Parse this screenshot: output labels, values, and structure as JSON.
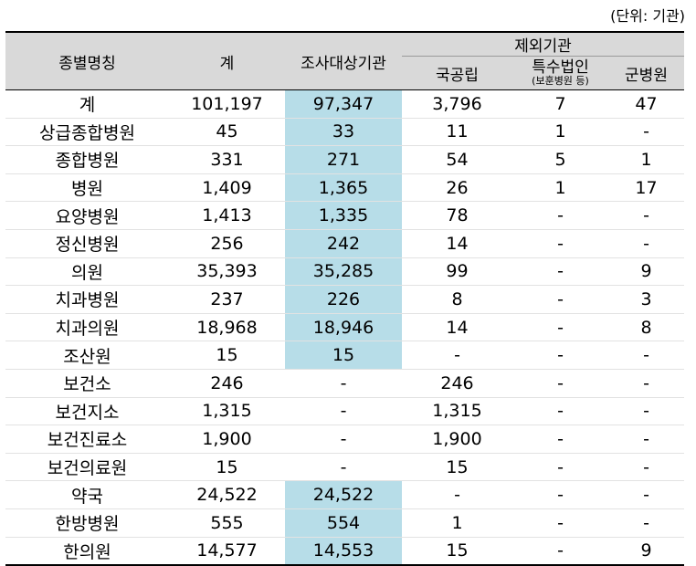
{
  "unit_label": "(단위: 기관)",
  "headers": {
    "name": "종별명칭",
    "total": "계",
    "surveyed": "조사대상기관",
    "excluded": "제외기관",
    "national": "국공립",
    "special": "특수법인",
    "special_note": "(보훈병원 등)",
    "military": "군병원"
  },
  "rows": [
    {
      "name": "계",
      "total": "101,197",
      "surveyed": "97,347",
      "national": "3,796",
      "special": "7",
      "military": "47"
    },
    {
      "name": "상급종합병원",
      "total": "45",
      "surveyed": "33",
      "national": "11",
      "special": "1",
      "military": "-"
    },
    {
      "name": "종합병원",
      "total": "331",
      "surveyed": "271",
      "national": "54",
      "special": "5",
      "military": "1"
    },
    {
      "name": "병원",
      "total": "1,409",
      "surveyed": "1,365",
      "national": "26",
      "special": "1",
      "military": "17"
    },
    {
      "name": "요양병원",
      "total": "1,413",
      "surveyed": "1,335",
      "national": "78",
      "special": "-",
      "military": "-"
    },
    {
      "name": "정신병원",
      "total": "256",
      "surveyed": "242",
      "national": "14",
      "special": "-",
      "military": "-"
    },
    {
      "name": "의원",
      "total": "35,393",
      "surveyed": "35,285",
      "national": "99",
      "special": "-",
      "military": "9"
    },
    {
      "name": "치과병원",
      "total": "237",
      "surveyed": "226",
      "national": "8",
      "special": "-",
      "military": "3"
    },
    {
      "name": "치과의원",
      "total": "18,968",
      "surveyed": "18,946",
      "national": "14",
      "special": "-",
      "military": "8"
    },
    {
      "name": "조산원",
      "total": "15",
      "surveyed": "15",
      "national": "-",
      "special": "-",
      "military": "-"
    },
    {
      "name": "보건소",
      "total": "246",
      "surveyed": "-",
      "national": "246",
      "special": "-",
      "military": "-"
    },
    {
      "name": "보건지소",
      "total": "1,315",
      "surveyed": "-",
      "national": "1,315",
      "special": "-",
      "military": "-"
    },
    {
      "name": "보건진료소",
      "total": "1,900",
      "surveyed": "-",
      "national": "1,900",
      "special": "-",
      "military": "-"
    },
    {
      "name": "보건의료원",
      "total": "15",
      "surveyed": "-",
      "national": "15",
      "special": "-",
      "military": "-"
    },
    {
      "name": "약국",
      "total": "24,522",
      "surveyed": "24,522",
      "national": "-",
      "special": "-",
      "military": "-"
    },
    {
      "name": "한방병원",
      "total": "555",
      "surveyed": "554",
      "national": "1",
      "special": "-",
      "military": "-"
    },
    {
      "name": "한의원",
      "total": "14,577",
      "surveyed": "14,553",
      "national": "15",
      "special": "-",
      "military": "9"
    }
  ],
  "colors": {
    "header_bg": "#d9d9d9",
    "highlight_bg": "#b7dde8"
  }
}
